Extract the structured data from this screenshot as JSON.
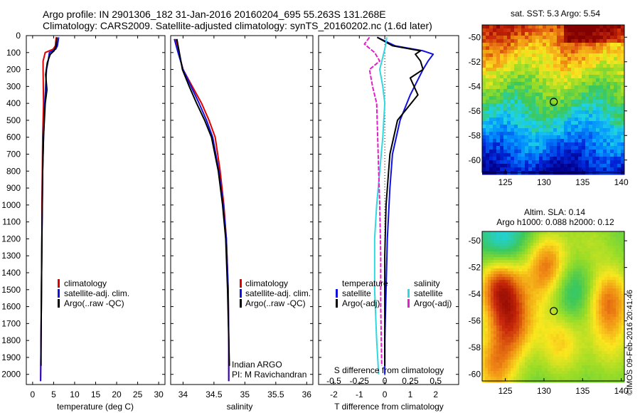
{
  "header": {
    "line1": "Argo profile: IN 2901306_182 31-Jan-2016 20160204_695 55.263S 131.268E",
    "line2": "Climatology: CARS2009. Satellite-adjusted climatology: synTS_20160202.nc (1.6d later)"
  },
  "colors": {
    "climatology": "#e00000",
    "satellite": "#1010e0",
    "argo": "#000000",
    "s_satellite": "#30d8e0",
    "s_argo": "#e020c8"
  },
  "depth_axis": {
    "ticks": [
      0,
      100,
      200,
      300,
      400,
      500,
      600,
      700,
      800,
      900,
      1000,
      1100,
      1200,
      1300,
      1400,
      1500,
      1600,
      1700,
      1800,
      1900,
      2000
    ],
    "tick_labels": [
      "0",
      "100",
      "200",
      "300",
      "400",
      "500",
      "600",
      "700",
      "800",
      "900",
      "1000",
      "1100",
      "1200",
      "1300",
      "1400",
      "1500",
      "1600",
      "1700",
      "1800",
      "1900",
      "2000"
    ],
    "ylim": [
      0,
      2060
    ]
  },
  "chart_data": [
    {
      "type": "line",
      "panel": "temperature",
      "xlabel": "temperature (deg C)",
      "xlim": [
        -1.5,
        31.5
      ],
      "xticks": [
        0,
        5,
        10,
        15,
        20,
        25,
        30
      ],
      "xtick_labels": [
        "0",
        "5",
        "10",
        "15",
        "20",
        "25",
        "30"
      ],
      "legend_placement": "lower-middle",
      "series": [
        {
          "name": "climatology",
          "color": "#e00000",
          "x": [
            5.6,
            5.4,
            4.9,
            3.0,
            2.5,
            2.5,
            2.6,
            2.4,
            2.3,
            2.2,
            2.2,
            2.1,
            2.0,
            1.9
          ],
          "y": [
            10,
            60,
            80,
            100,
            150,
            200,
            400,
            600,
            800,
            1000,
            1200,
            1500,
            1800,
            2040
          ]
        },
        {
          "name": "satellite-adj. clim.",
          "color": "#1010e0",
          "x": [
            6.2,
            5.9,
            5.5,
            4.0,
            3.7,
            3.3,
            2.9,
            2.6,
            2.4,
            2.3,
            2.2,
            2.1,
            2.0,
            1.9
          ],
          "y": [
            10,
            60,
            80,
            100,
            150,
            200,
            400,
            600,
            800,
            1000,
            1200,
            1500,
            1800,
            2040
          ]
        },
        {
          "name": "Argo(..raw -QC)",
          "color": "#000000",
          "x": [
            5.8,
            5.6,
            5.1,
            4.2,
            3.5,
            3.1,
            3.4,
            3.0,
            2.6,
            2.4,
            2.3,
            2.2,
            2.1,
            2.0,
            2.0
          ],
          "y": [
            10,
            60,
            90,
            110,
            160,
            230,
            320,
            400,
            600,
            800,
            1000,
            1200,
            1500,
            1800,
            1950
          ]
        }
      ]
    },
    {
      "type": "line",
      "panel": "salinity",
      "xlabel": "salinity",
      "xlim": [
        33.8,
        36.1
      ],
      "xticks": [
        34,
        34.5,
        35,
        35.5,
        36
      ],
      "xtick_labels": [
        "34",
        "34.5",
        "35",
        "35.5",
        "36"
      ],
      "legend_placement": "lower-right",
      "annotation": [
        "Indian ARGO",
        "PI: M Ravichandran"
      ],
      "series": [
        {
          "name": "climatology",
          "color": "#e00000",
          "x": [
            33.88,
            33.93,
            34.0,
            34.15,
            34.3,
            34.42,
            34.52,
            34.6,
            34.66,
            34.7,
            34.73,
            34.74,
            34.74
          ],
          "y": [
            20,
            100,
            200,
            300,
            400,
            500,
            600,
            800,
            1000,
            1200,
            1500,
            1800,
            2040
          ]
        },
        {
          "name": "satellite-adj. clim.",
          "color": "#1010e0",
          "x": [
            33.86,
            33.92,
            34.0,
            34.13,
            34.26,
            34.38,
            34.48,
            34.58,
            34.65,
            34.7,
            34.73,
            34.74,
            34.74
          ],
          "y": [
            20,
            100,
            200,
            300,
            400,
            500,
            600,
            800,
            1000,
            1200,
            1500,
            1800,
            2040
          ]
        },
        {
          "name": "Argo(..raw -QC)",
          "color": "#000000",
          "x": [
            33.9,
            33.94,
            33.99,
            34.1,
            34.22,
            34.35,
            34.46,
            34.57,
            34.64,
            34.69,
            34.72,
            34.74,
            34.75
          ],
          "y": [
            20,
            100,
            200,
            300,
            400,
            500,
            600,
            800,
            1000,
            1200,
            1500,
            1800,
            1950
          ]
        }
      ]
    },
    {
      "type": "line",
      "panel": "difference",
      "xlabel": "T difference from climatology",
      "xlabel2": "S difference from climatology",
      "xlim": [
        -2.6,
        2.9
      ],
      "xticks": [
        -2,
        -1,
        0,
        1,
        2
      ],
      "xtick_labels": [
        "-2",
        "-1",
        "0",
        "1",
        "2"
      ],
      "xticks_s": [
        -0.5,
        -0.25,
        0,
        0.25,
        0.5
      ],
      "xtick_labels_s": [
        "-0.5",
        "-0.25",
        "0",
        "0.25",
        "0.5"
      ],
      "legend_title_t": "temperature",
      "legend_title_s": "salinity",
      "series": [
        {
          "name": "satellite",
          "group": "temperature",
          "color": "#1010e0",
          "x": [
            -0.3,
            0.4,
            1.5,
            1.9,
            1.7,
            1.5,
            1.0,
            0.6,
            0.3,
            0.2,
            0.1,
            0.05,
            0.0,
            0.0
          ],
          "y": [
            10,
            60,
            90,
            110,
            150,
            200,
            350,
            500,
            700,
            900,
            1200,
            1500,
            1800,
            2000
          ]
        },
        {
          "name": "Argo(-adj)",
          "group": "temperature",
          "color": "#000000",
          "x": [
            -0.3,
            0.3,
            1.4,
            1.2,
            1.4,
            1.5,
            1.0,
            1.3,
            0.5,
            0.2,
            0.05,
            0.0,
            0.0,
            0.0
          ],
          "y": [
            10,
            60,
            90,
            110,
            150,
            200,
            250,
            350,
            500,
            700,
            1000,
            1300,
            1700,
            1950
          ]
        },
        {
          "name": "satellite",
          "group": "salinity",
          "color": "#30d8e0",
          "x": [
            0.02,
            0.0,
            -0.05,
            -0.02,
            0.0,
            -0.02,
            -0.05,
            -0.08,
            -0.1,
            -0.1,
            -0.08,
            -0.06
          ],
          "y": [
            10,
            80,
            200,
            300,
            400,
            600,
            800,
            1000,
            1200,
            1500,
            1800,
            2000
          ]
        },
        {
          "name": "Argo(-adj)",
          "group": "salinity",
          "color": "#e020c8",
          "x": [
            -0.15,
            -0.2,
            -0.1,
            -0.05,
            -0.15,
            -0.12,
            -0.08,
            -0.07,
            -0.06,
            -0.05,
            -0.04,
            -0.04,
            -0.03
          ],
          "y": [
            10,
            50,
            100,
            150,
            200,
            300,
            400,
            600,
            800,
            1000,
            1300,
            1600,
            1950
          ]
        }
      ]
    },
    {
      "type": "heatmap",
      "panel": "sst-map",
      "title": "sat. SST: 5.3 Argo: 5.54",
      "xlim": [
        122,
        140.4
      ],
      "ylim": [
        -61,
        -49
      ],
      "xticks": [
        125,
        130,
        135,
        140
      ],
      "xtick_labels": [
        "125",
        "130",
        "135",
        "140"
      ],
      "yticks": [
        -50,
        -52,
        -54,
        -56,
        -58,
        -60
      ],
      "ytick_labels": [
        "-50",
        "-52",
        "-54",
        "-56",
        "-58",
        "-60"
      ],
      "marker": {
        "lon": 131.268,
        "lat": -55.263
      }
    },
    {
      "type": "heatmap",
      "panel": "sla-map",
      "title": "Altim. SLA: 0.14",
      "subtitle": "Argo h1000: 0.088 h2000: 0.12",
      "xlim": [
        122,
        140.4
      ],
      "ylim": [
        -60.5,
        -49.3
      ],
      "xticks": [
        125,
        130,
        135,
        140
      ],
      "xtick_labels": [
        "125",
        "130",
        "135",
        "140"
      ],
      "yticks": [
        -50,
        -52,
        -54,
        -56,
        -58,
        -60
      ],
      "ytick_labels": [
        "-50",
        "-52",
        "-54",
        "-56",
        "-58",
        "-60"
      ],
      "marker": {
        "lon": 131.268,
        "lat": -55.263
      }
    }
  ],
  "credit": "©IMOS 09-Feb-2016 20:41:46"
}
